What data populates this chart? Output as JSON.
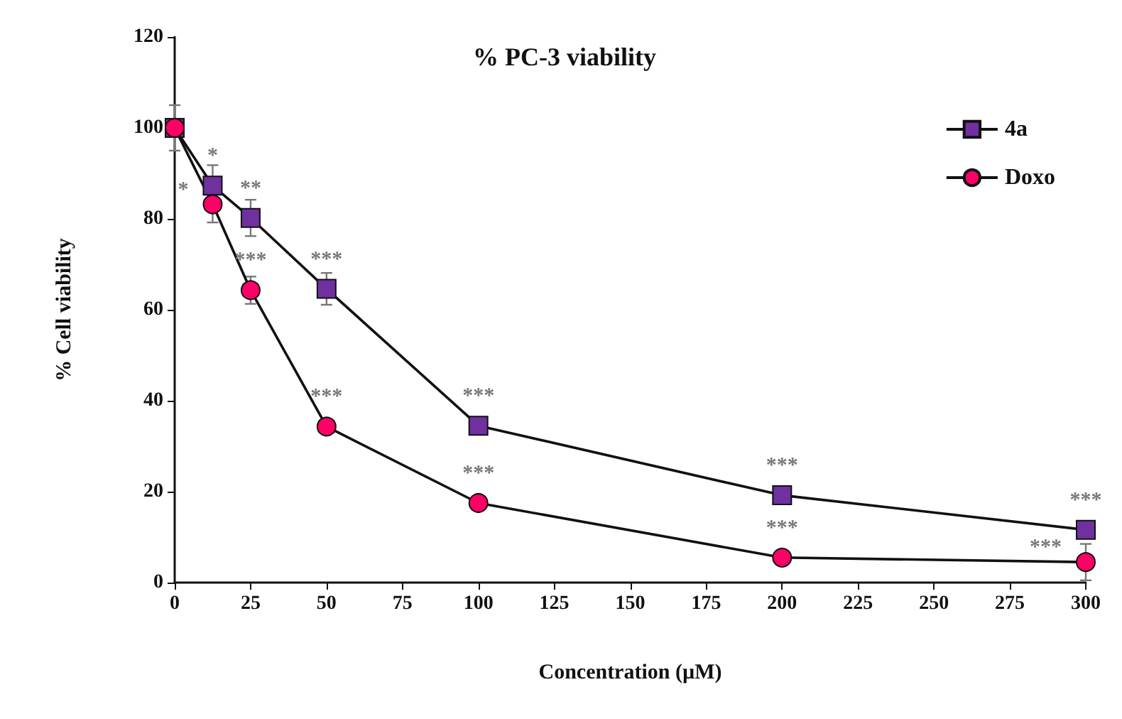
{
  "chart_data": {
    "type": "line",
    "title": "% PC-3 viability",
    "xlabel": "Concentration (µM)",
    "ylabel": "% Cell viability",
    "x": [
      0,
      12.5,
      25,
      50,
      100,
      200,
      300
    ],
    "series": [
      {
        "name": "4a",
        "color": "#7030a0",
        "marker": "square",
        "values": [
          100,
          87.3,
          80.2,
          64.6,
          34.5,
          19.2,
          11.6
        ],
        "errors": [
          5,
          4.5,
          4,
          3.5,
          null,
          null,
          null
        ],
        "value_labels": [
          null,
          "*",
          "**",
          "***",
          "***",
          "***",
          "***"
        ]
      },
      {
        "name": "Doxo",
        "color": "#ff0066",
        "marker": "circle",
        "values": [
          100,
          83.2,
          64.3,
          34.3,
          17.5,
          5.5,
          4.5
        ],
        "errors": [
          null,
          4,
          3,
          null,
          null,
          null,
          4
        ],
        "value_labels": [
          null,
          "*",
          "***",
          "***",
          "***",
          "***",
          "***"
        ]
      }
    ],
    "xlim": [
      0,
      300
    ],
    "xticks": [
      0,
      25,
      50,
      75,
      100,
      125,
      150,
      175,
      200,
      225,
      250,
      275,
      300
    ],
    "ylim": [
      0,
      120
    ],
    "yticks": [
      0,
      20,
      40,
      60,
      80,
      100,
      120
    ],
    "grid": false,
    "legend": "top right",
    "line_style": "solid"
  }
}
